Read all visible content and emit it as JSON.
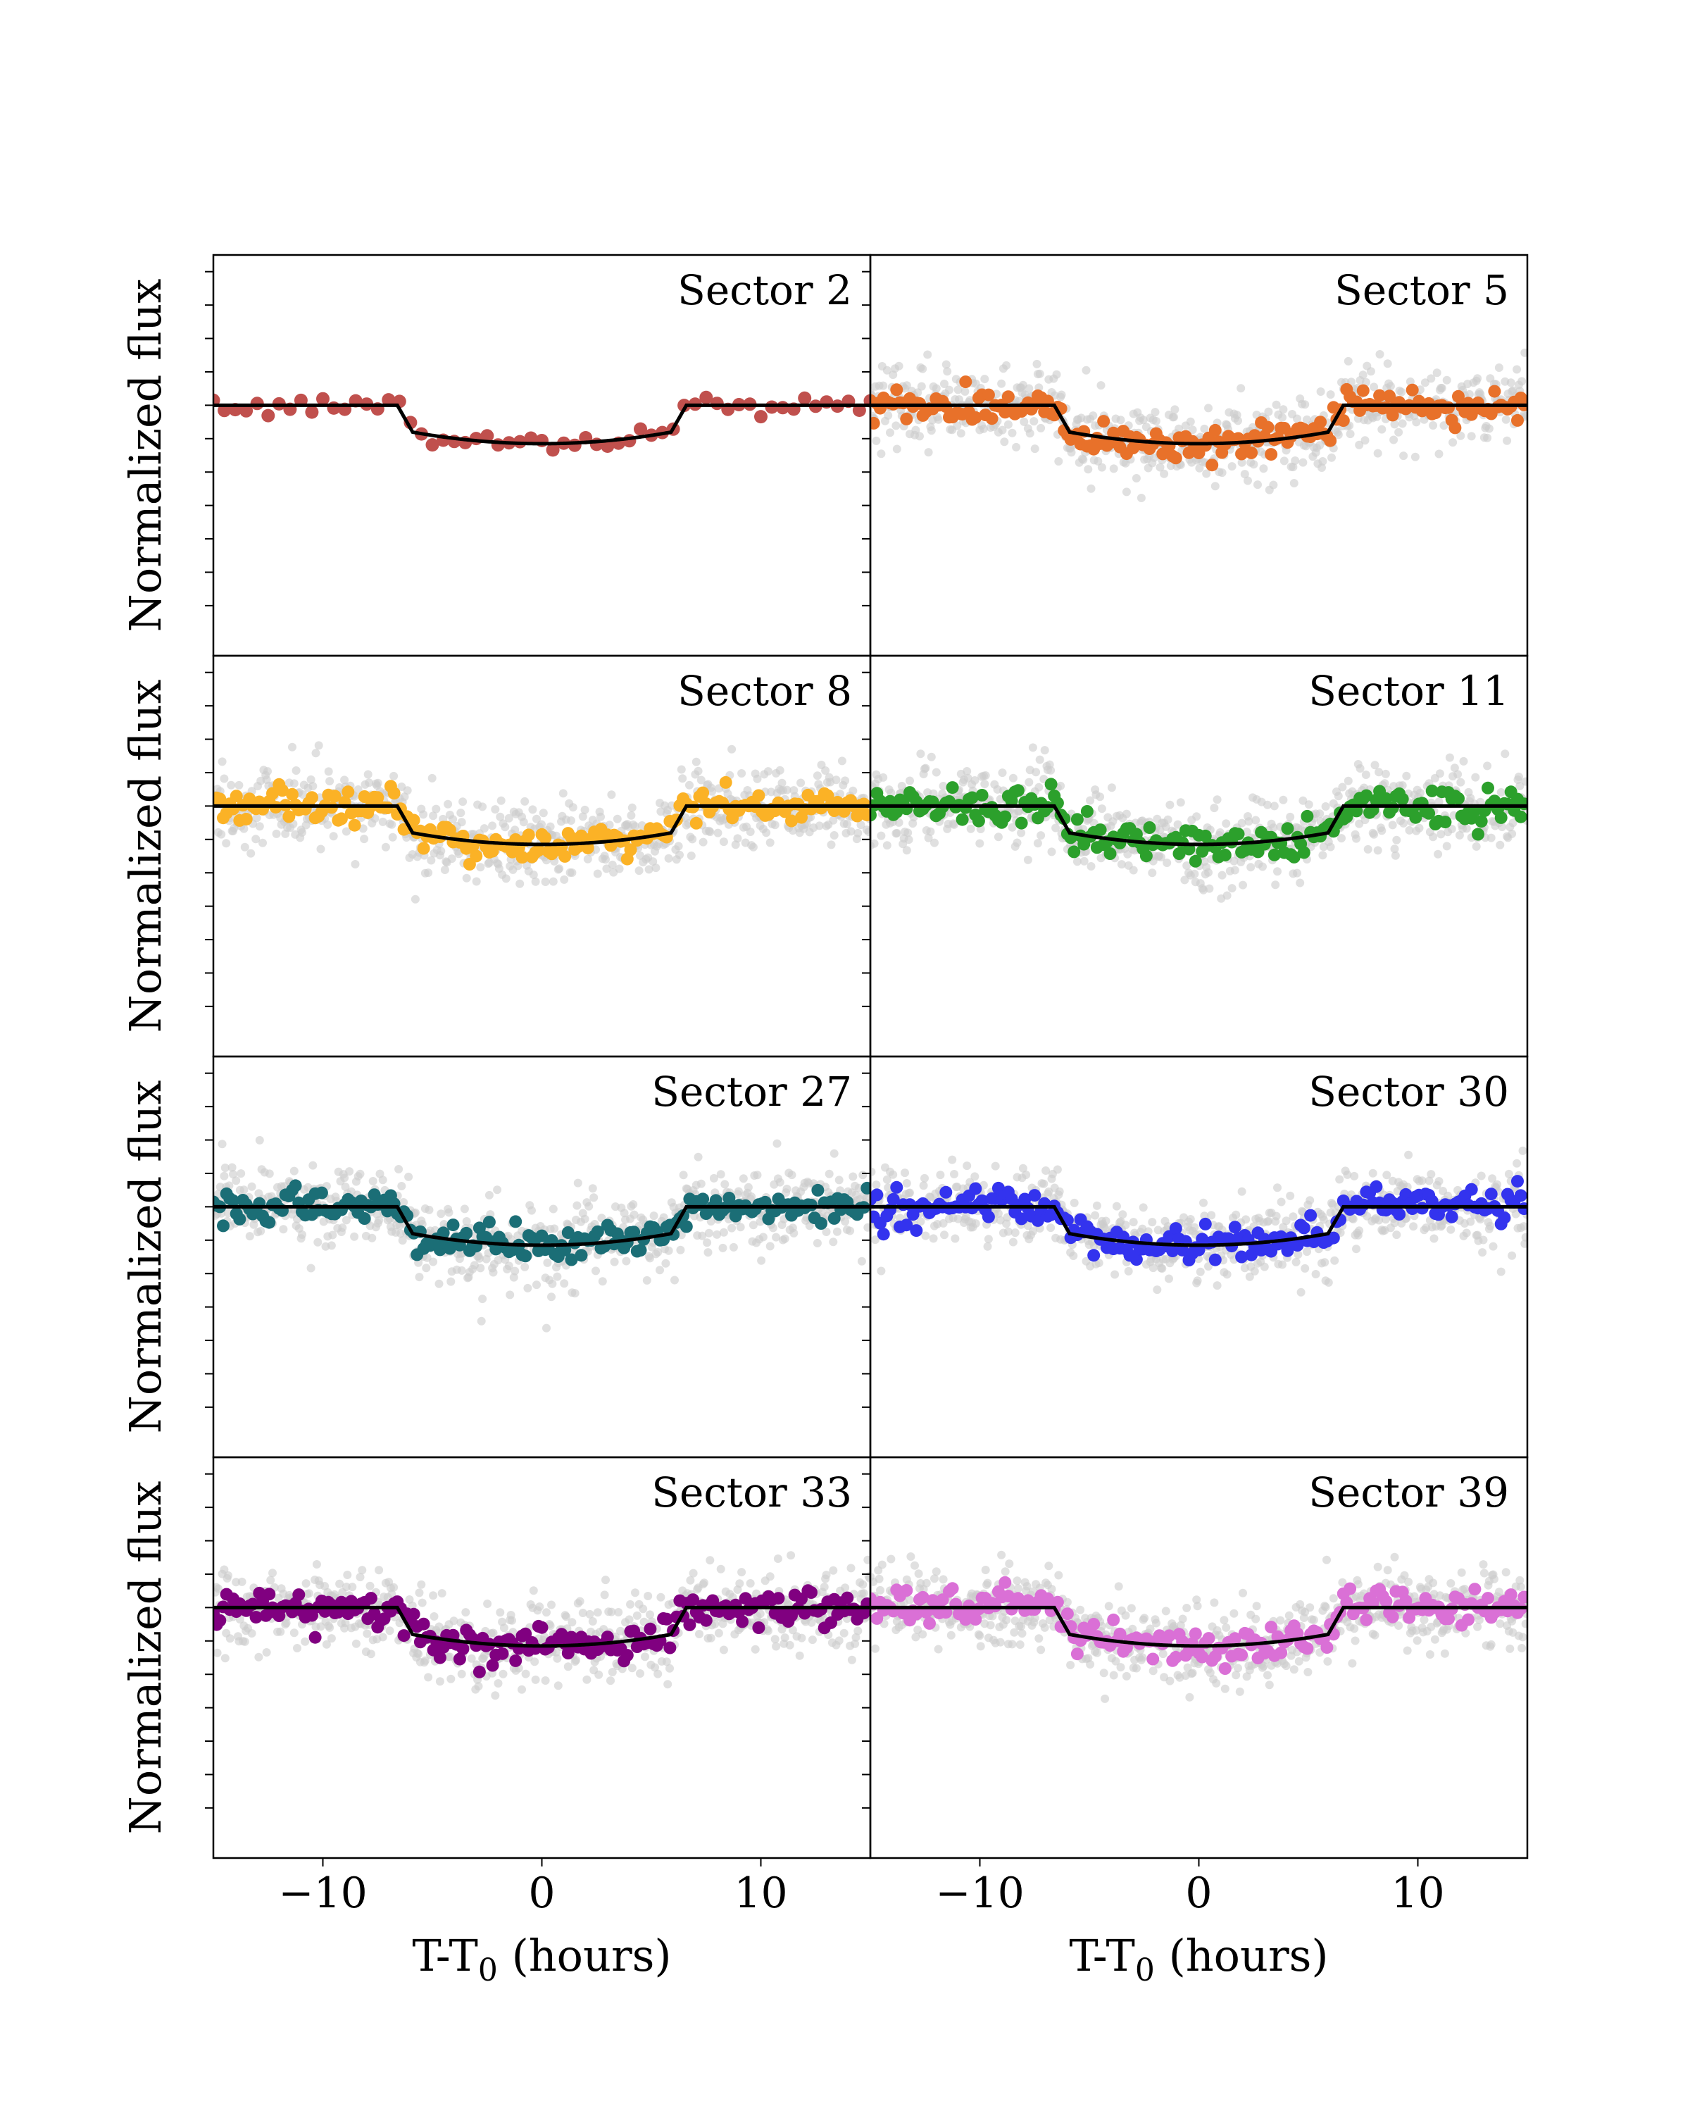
{
  "chart_data": {
    "type": "scatter",
    "layout": "4 rows x 2 columns, shared axes",
    "ylabel": "Normalized flux",
    "xlabel_main": "T-T",
    "xlabel_sub": "0",
    "xlabel_unit": " (hours)",
    "xlim": [
      -15,
      15
    ],
    "x_ticks": [
      -10,
      0,
      10
    ],
    "x_tick_labels": [
      "−10",
      "0",
      "10"
    ],
    "ylim": [
      0.9925,
      1.0045
    ],
    "y_ticks": [
      0.994,
      0.995,
      0.996,
      0.997,
      0.998,
      0.999,
      1.0,
      1.001,
      1.002,
      1.003,
      1.004
    ],
    "y_tick_labels_shown": false,
    "model": {
      "description": "transit model",
      "color": "#000000",
      "t14_hours": 13.2,
      "ingress_hours": 0.7,
      "depth": 0.00115,
      "limb_curvature": 0.3
    },
    "unbinned_color": "#cccccc",
    "panels": [
      {
        "label": "Sector 2",
        "color": "#c0504d",
        "has_unbinned": false,
        "binned_step_hours": 0.5,
        "binned_scatter": 0.00016,
        "unbinned_scatter": 0
      },
      {
        "label": "Sector 5",
        "color": "#e8712a",
        "has_unbinned": true,
        "binned_step_hours": 0.15,
        "binned_scatter": 0.00025,
        "unbinned_scatter": 0.0006
      },
      {
        "label": "Sector 8",
        "color": "#fbb226",
        "has_unbinned": true,
        "binned_step_hours": 0.15,
        "binned_scatter": 0.00025,
        "unbinned_scatter": 0.0006
      },
      {
        "label": "Sector 11",
        "color": "#2ca02c",
        "has_unbinned": true,
        "binned_step_hours": 0.15,
        "binned_scatter": 0.00028,
        "unbinned_scatter": 0.0006
      },
      {
        "label": "Sector 27",
        "color": "#1b6e76",
        "has_unbinned": true,
        "binned_step_hours": 0.15,
        "binned_scatter": 0.00027,
        "unbinned_scatter": 0.0006
      },
      {
        "label": "Sector 30",
        "color": "#3333ee",
        "has_unbinned": true,
        "binned_step_hours": 0.15,
        "binned_scatter": 0.00027,
        "unbinned_scatter": 0.0006
      },
      {
        "label": "Sector 33",
        "color": "#800080",
        "has_unbinned": true,
        "binned_step_hours": 0.15,
        "binned_scatter": 0.00027,
        "unbinned_scatter": 0.0006
      },
      {
        "label": "Sector 39",
        "color": "#da70d6",
        "has_unbinned": true,
        "binned_step_hours": 0.15,
        "binned_scatter": 0.00025,
        "unbinned_scatter": 0.0006
      }
    ]
  }
}
